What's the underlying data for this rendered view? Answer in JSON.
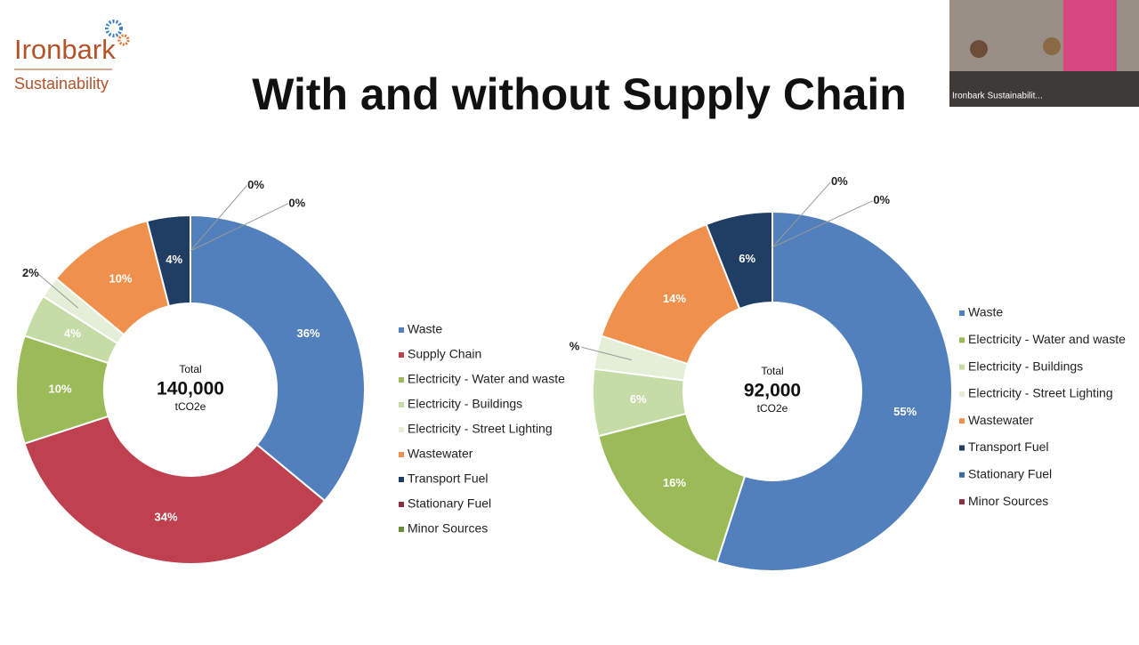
{
  "logo": {
    "name": "Ironbark",
    "tagline": "Sustainability"
  },
  "slide_title": "With and without Supply Chain",
  "video": {
    "caption": "Ironbark Sustainabilit..."
  },
  "chart_data": [
    {
      "type": "donut",
      "center_text": [
        "Total",
        "140,000",
        "tCO2e"
      ],
      "categories": [
        "Waste",
        "Supply Chain",
        "Electricity - Water and waste",
        "Electricity - Buildings",
        "Electricity - Street Lighting",
        "Wastewater",
        "Transport Fuel",
        "Stationary Fuel",
        "Minor Sources"
      ],
      "values": [
        36,
        34,
        10,
        4,
        2,
        10,
        4,
        0,
        0
      ],
      "value_labels": [
        "36%",
        "34%",
        "10%",
        "4%",
        "2%",
        "10%",
        "4%",
        "0%",
        "0%"
      ],
      "colors": [
        "#5280bd",
        "#bf414f",
        "#9bbb59",
        "#c6dca6",
        "#e5eed6",
        "#ef914c",
        "#203d63",
        "#8c2f3d",
        "#6b8c3b"
      ]
    },
    {
      "type": "donut",
      "center_text": [
        "Total",
        "92,000",
        "tCO2e"
      ],
      "categories": [
        "Waste",
        "Electricity - Water and waste",
        "Electricity - Buildings",
        "Electricity - Street Lighting",
        "Wastewater",
        "Transport Fuel",
        "Stationary Fuel",
        "Minor Sources"
      ],
      "values": [
        55,
        16,
        6,
        3,
        14,
        6,
        0,
        0
      ],
      "value_labels": [
        "55%",
        "16%",
        "6%",
        "%",
        "14%",
        "6%",
        "0%",
        "0%"
      ],
      "colors": [
        "#5280bd",
        "#9bbb59",
        "#c6dca6",
        "#e5eed6",
        "#ef914c",
        "#203d63",
        "#3d6a9e",
        "#8c2f3d"
      ]
    }
  ]
}
